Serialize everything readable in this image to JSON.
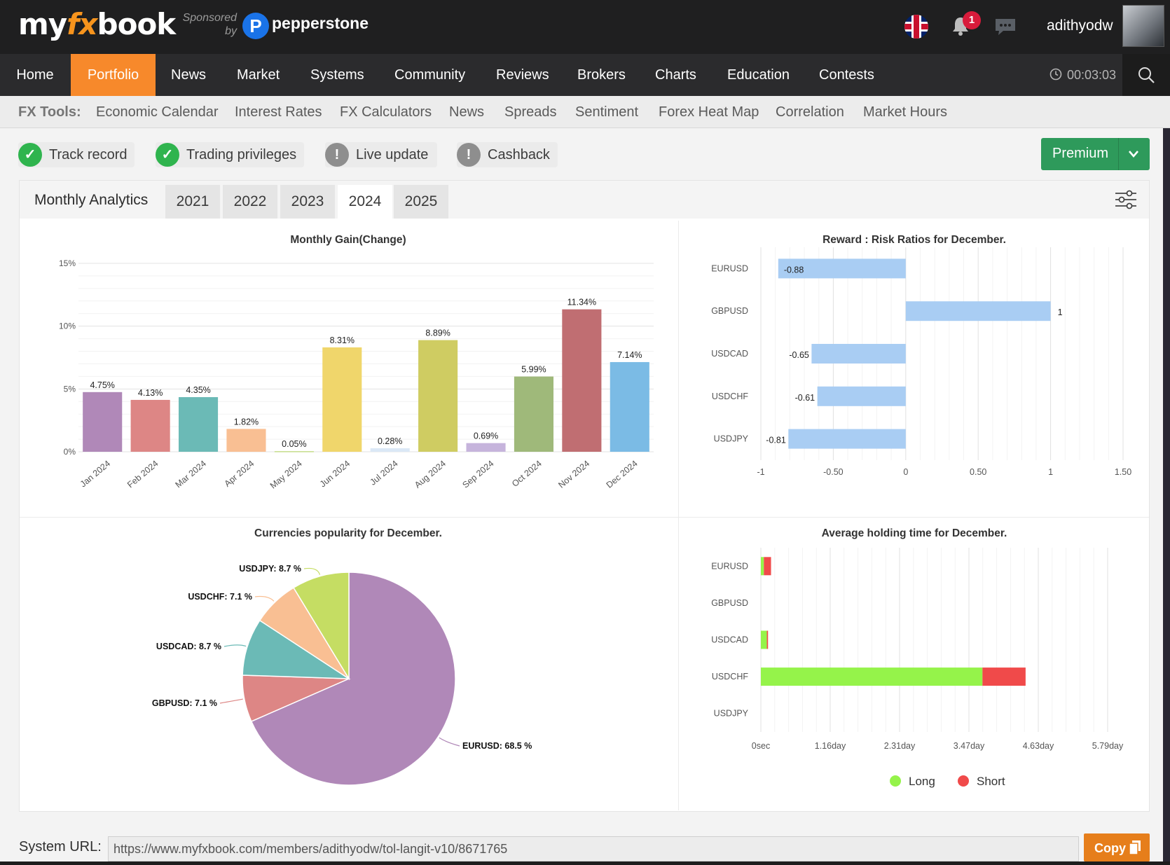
{
  "header": {
    "logo_pre": "my",
    "logo_fx": "fx",
    "logo_post": "book",
    "sponsored_by": "Sponsored by",
    "sponsor_name": "pepperstone",
    "sponsor_icon_letter": "P",
    "notifications_count": "1",
    "username": "adithyodw"
  },
  "nav": {
    "items": [
      "Home",
      "Portfolio",
      "News",
      "Market",
      "Systems",
      "Community",
      "Reviews",
      "Brokers",
      "Charts",
      "Education",
      "Contests"
    ],
    "active": "Portfolio",
    "timer": "00:03:03"
  },
  "tools": {
    "label": "FX Tools:",
    "items": [
      "Economic Calendar",
      "Interest Rates",
      "FX Calculators",
      "News",
      "Spreads",
      "Sentiment",
      "Forex Heat Map",
      "Correlation",
      "Market Hours"
    ]
  },
  "badges": [
    {
      "label": "Track record",
      "icon": "check-icon",
      "status": "ok"
    },
    {
      "label": "Trading privileges",
      "icon": "check-icon",
      "status": "ok"
    },
    {
      "label": "Live update",
      "icon": "warning-icon",
      "status": "warn"
    },
    {
      "label": "Cashback",
      "icon": "warning-icon",
      "status": "warn"
    }
  ],
  "premium_label": "Premium",
  "analytics": {
    "title": "Monthly Analytics",
    "years": [
      "2021",
      "2022",
      "2023",
      "2024",
      "2025"
    ],
    "selected_year": "2024"
  },
  "chart_data": [
    {
      "type": "bar",
      "title": "Monthly Gain(Change)",
      "categories": [
        "Jan 2024",
        "Feb 2024",
        "Mar 2024",
        "Apr 2024",
        "May 2024",
        "Jun 2024",
        "Jul 2024",
        "Aug 2024",
        "Sep 2024",
        "Oct 2024",
        "Nov 2024",
        "Dec 2024"
      ],
      "values": [
        4.75,
        4.13,
        4.35,
        1.82,
        0.05,
        8.31,
        0.28,
        8.89,
        0.69,
        5.99,
        11.34,
        7.14
      ],
      "labels": [
        "4.75%",
        "4.13%",
        "4.35%",
        "1.82%",
        "0.05%",
        "8.31%",
        "0.28%",
        "8.89%",
        "0.69%",
        "5.99%",
        "11.34%",
        "7.14%"
      ],
      "colors": [
        "#b088b8",
        "#dd8685",
        "#6bbab6",
        "#f9bf93",
        "#c5dd8a",
        "#f0d66b",
        "#dbe8f6",
        "#cfcc62",
        "#c6b4dc",
        "#9fb97a",
        "#c06e72",
        "#7bbbe5"
      ],
      "yticks": [
        "0%",
        "5%",
        "10%",
        "15%"
      ],
      "ylim": [
        0,
        15
      ],
      "grid": true
    },
    {
      "type": "bar",
      "orientation": "horizontal",
      "title": "Reward : Risk Ratios for December.",
      "categories": [
        "EURUSD",
        "GBPUSD",
        "USDCAD",
        "USDCHF",
        "USDJPY"
      ],
      "values": [
        -0.88,
        1,
        -0.65,
        -0.61,
        -0.81
      ],
      "labels": [
        "-0.88",
        "1",
        "-0.65",
        "-0.61",
        "-0.81"
      ],
      "color": "#a9cdf3",
      "xticks": [
        "-1",
        "-0.50",
        "0",
        "0.50",
        "1",
        "1.50"
      ],
      "xlim": [
        -1,
        1.5
      ],
      "grid": true
    },
    {
      "type": "pie",
      "title": "Currencies popularity for December.",
      "slices": [
        {
          "name": "EURUSD",
          "value": 68.5,
          "label": "EURUSD: 68.5 %",
          "color": "#b088b8"
        },
        {
          "name": "GBPUSD",
          "value": 7.1,
          "label": "GBPUSD: 7.1 %",
          "color": "#dd8685"
        },
        {
          "name": "USDCAD",
          "value": 8.7,
          "label": "USDCAD: 8.7 %",
          "color": "#6bbab6"
        },
        {
          "name": "USDCHF",
          "value": 7.1,
          "label": "USDCHF: 7.1 %",
          "color": "#f9bf93"
        },
        {
          "name": "USDJPY",
          "value": 8.7,
          "label": "USDJPY: 8.7 %",
          "color": "#c5dd63"
        }
      ]
    },
    {
      "type": "bar",
      "orientation": "horizontal",
      "stacked": true,
      "title": "Average holding time for December.",
      "categories": [
        "EURUSD",
        "GBPUSD",
        "USDCAD",
        "USDCHF",
        "USDJPY"
      ],
      "series": [
        {
          "name": "Long",
          "color": "#95f34a",
          "values": [
            0.05,
            0,
            0.1,
            3.7,
            0
          ]
        },
        {
          "name": "Short",
          "color": "#f04a4a",
          "values": [
            0.12,
            0,
            0.02,
            0.72,
            0
          ]
        }
      ],
      "xticks": [
        "0sec",
        "1.16day",
        "2.31day",
        "3.47day",
        "4.63day",
        "5.79day"
      ],
      "xlim": [
        0,
        5.79
      ],
      "xunit": "days",
      "legend": "bottom-center",
      "grid": true
    }
  ],
  "system_url": {
    "label": "System URL:",
    "value": "https://www.myfxbook.com/members/adithyodw/tol-langit-v10/8671765",
    "copy_label": "Copy"
  }
}
